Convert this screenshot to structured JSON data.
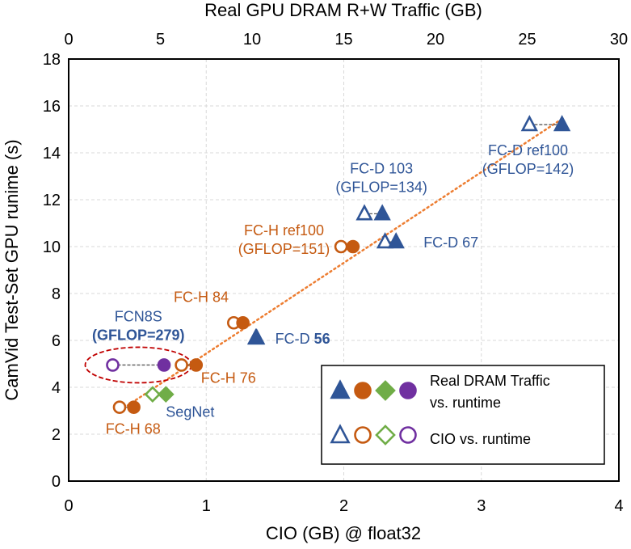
{
  "chart_data": {
    "type": "scatter",
    "title": "",
    "xlabel": "CIO (GB) @ float32",
    "x2label": "Real GPU DRAM R+W Traffic (GB)",
    "ylabel": "CamVid Test-Set GPU runime (s)",
    "xlim": [
      0,
      4
    ],
    "x2lim": [
      0,
      30
    ],
    "ylim": [
      0,
      18
    ],
    "xticks": [
      "0",
      "1",
      "2",
      "3",
      "4"
    ],
    "x2ticks": [
      "0",
      "5",
      "10",
      "15",
      "20",
      "25",
      "30"
    ],
    "yticks": [
      "0",
      "2",
      "4",
      "6",
      "8",
      "10",
      "12",
      "14",
      "16",
      "18"
    ],
    "grid": true,
    "colors": {
      "fcd": "#2F5597",
      "fch": "#C55A11",
      "segnet": "#70AD47",
      "fcn": "#7030A0",
      "trend": "#ED7D31",
      "ellipse": "#C00000",
      "connector": "#595959"
    },
    "series": [
      {
        "name": "FC-D ref100",
        "group": "fcd",
        "marker": "triangle",
        "runtime": 15.2,
        "cio_gb": 3.35,
        "real_dram_gb": 26.9
      },
      {
        "name": "FC-D 103",
        "group": "fcd",
        "marker": "triangle",
        "runtime": 11.4,
        "cio_gb": 2.15,
        "real_dram_gb": 17.1
      },
      {
        "name": "FC-D 67",
        "group": "fcd",
        "marker": "triangle",
        "runtime": 10.2,
        "cio_gb": 2.3,
        "real_dram_gb": 17.85
      },
      {
        "name": "FC-D 56",
        "group": "fcd",
        "marker": "triangle",
        "runtime": 6.1,
        "cio_gb": 1.36,
        "real_dram_gb": 10.25
      },
      {
        "name": "FC-H ref100",
        "group": "fch",
        "marker": "circle",
        "runtime": 10.0,
        "cio_gb": 1.98,
        "real_dram_gb": 15.5
      },
      {
        "name": "FC-H 84",
        "group": "fch",
        "marker": "circle",
        "runtime": 6.75,
        "cio_gb": 1.2,
        "real_dram_gb": 9.5
      },
      {
        "name": "FC-H 76",
        "group": "fch",
        "marker": "circle",
        "runtime": 4.95,
        "cio_gb": 0.82,
        "real_dram_gb": 6.95
      },
      {
        "name": "FC-H 68",
        "group": "fch",
        "marker": "circle",
        "runtime": 3.15,
        "cio_gb": 0.37,
        "real_dram_gb": 3.55
      },
      {
        "name": "SegNet",
        "group": "segnet",
        "marker": "diamond",
        "runtime": 3.7,
        "cio_gb": 0.61,
        "real_dram_gb": 5.3
      },
      {
        "name": "FCN8S",
        "group": "fcn",
        "marker": "circle",
        "runtime": 4.95,
        "cio_gb": 0.32,
        "real_dram_gb": 5.2
      }
    ],
    "trendline": {
      "style": "dotted",
      "from": {
        "cio_gb": 0.37,
        "runtime": 3.0
      },
      "to": {
        "cio_gb": 3.6,
        "runtime": 15.5
      }
    },
    "annotations": [
      {
        "ref": "FC-D ref100",
        "group": "fcd",
        "lines": [
          "FC-D ref100",
          "(GFLOP=142)"
        ]
      },
      {
        "ref": "FC-D 103",
        "group": "fcd",
        "lines": [
          "FC-D 103",
          "(GFLOP=134)"
        ]
      },
      {
        "ref": "FC-D 67",
        "group": "fcd",
        "lines": [
          "FC-D 67"
        ]
      },
      {
        "ref": "FC-D 56",
        "group": "fcd",
        "prefix": "FC-D ",
        "bold": "56"
      },
      {
        "ref": "FC-H ref100",
        "group": "fch",
        "lines": [
          "FC-H ref100",
          "(GFLOP=151)"
        ]
      },
      {
        "ref": "FC-H 84",
        "group": "fch",
        "lines": [
          "FC-H 84"
        ]
      },
      {
        "ref": "FC-H 76",
        "group": "fch",
        "lines": [
          "FC-H 76"
        ]
      },
      {
        "ref": "FC-H 68",
        "group": "fch",
        "lines": [
          "FC-H 68"
        ]
      },
      {
        "ref": "SegNet",
        "group": "fcd",
        "lines": [
          "SegNet"
        ]
      },
      {
        "ref": "FCN8S",
        "group": "fcd",
        "lines": [
          "FCN8S"
        ],
        "bold_line": "(GFLOP=279)"
      }
    ],
    "legend": {
      "position": "bottom-right",
      "entries": [
        {
          "filled": true,
          "label_lines": [
            "Real DRAM Traffic",
            "vs. runtime"
          ]
        },
        {
          "filled": false,
          "label_lines": [
            "CIO vs. runtime"
          ]
        }
      ]
    }
  }
}
